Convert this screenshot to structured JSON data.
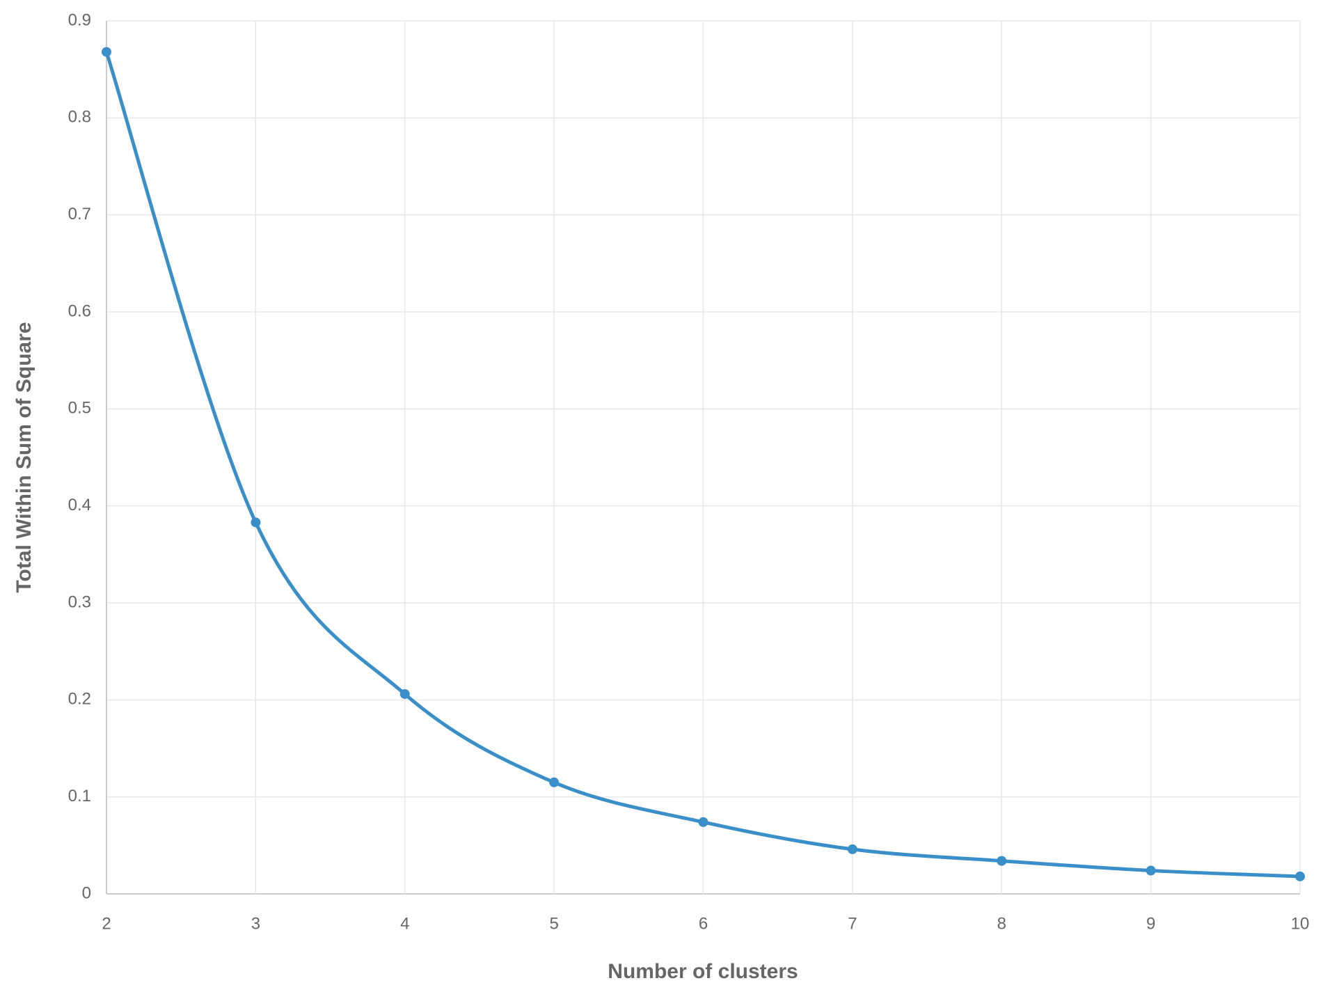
{
  "chart_data": {
    "type": "line",
    "xlabel": "Number of clusters",
    "ylabel": "Total Within Sum of Square",
    "x": [
      2,
      3,
      4,
      5,
      6,
      7,
      8,
      9,
      10
    ],
    "values": [
      0.868,
      0.383,
      0.206,
      0.115,
      0.074,
      0.046,
      0.034,
      0.024,
      0.018
    ],
    "color": "#3b8fc9",
    "xlim": [
      2,
      10
    ],
    "xticks": [
      2,
      3,
      4,
      5,
      6,
      7,
      8,
      9,
      10
    ],
    "ylim": [
      0,
      0.9
    ],
    "yticks": [
      0,
      0.1,
      0.2,
      0.3,
      0.4,
      0.5,
      0.6,
      0.7,
      0.8,
      0.9
    ],
    "grid": true
  }
}
